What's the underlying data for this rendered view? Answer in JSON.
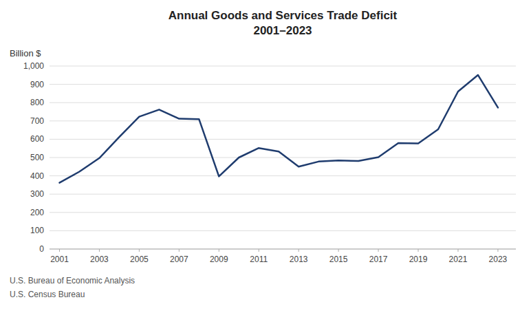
{
  "chart_data": {
    "type": "line",
    "title": "Annual Goods and Services Trade Deficit",
    "subtitle": "2001–2023",
    "ylabel": "Billion $",
    "annotations": [
      "U.S. Bureau of Economic Analysis",
      "U.S. Census Bureau"
    ],
    "x": [
      2001,
      2002,
      2003,
      2004,
      2005,
      2006,
      2007,
      2008,
      2009,
      2010,
      2011,
      2012,
      2013,
      2014,
      2015,
      2016,
      2017,
      2018,
      2019,
      2020,
      2021,
      2022,
      2023
    ],
    "values": [
      362,
      423,
      497,
      612,
      723,
      762,
      712,
      710,
      397,
      500,
      552,
      533,
      450,
      478,
      484,
      481,
      502,
      579,
      577,
      654,
      861,
      951,
      773
    ],
    "color": "#1F3C6E",
    "xlim": [
      2000.5,
      2023.9
    ],
    "xticks": [
      2001,
      2003,
      2005,
      2007,
      2009,
      2011,
      2013,
      2015,
      2017,
      2019,
      2021,
      2023
    ],
    "ylim": [
      0,
      1000
    ],
    "yticks": [
      0,
      100,
      200,
      300,
      400,
      500,
      600,
      700,
      800,
      900,
      {
        "value": 1000,
        "label": "1,000"
      }
    ],
    "grid": true
  }
}
